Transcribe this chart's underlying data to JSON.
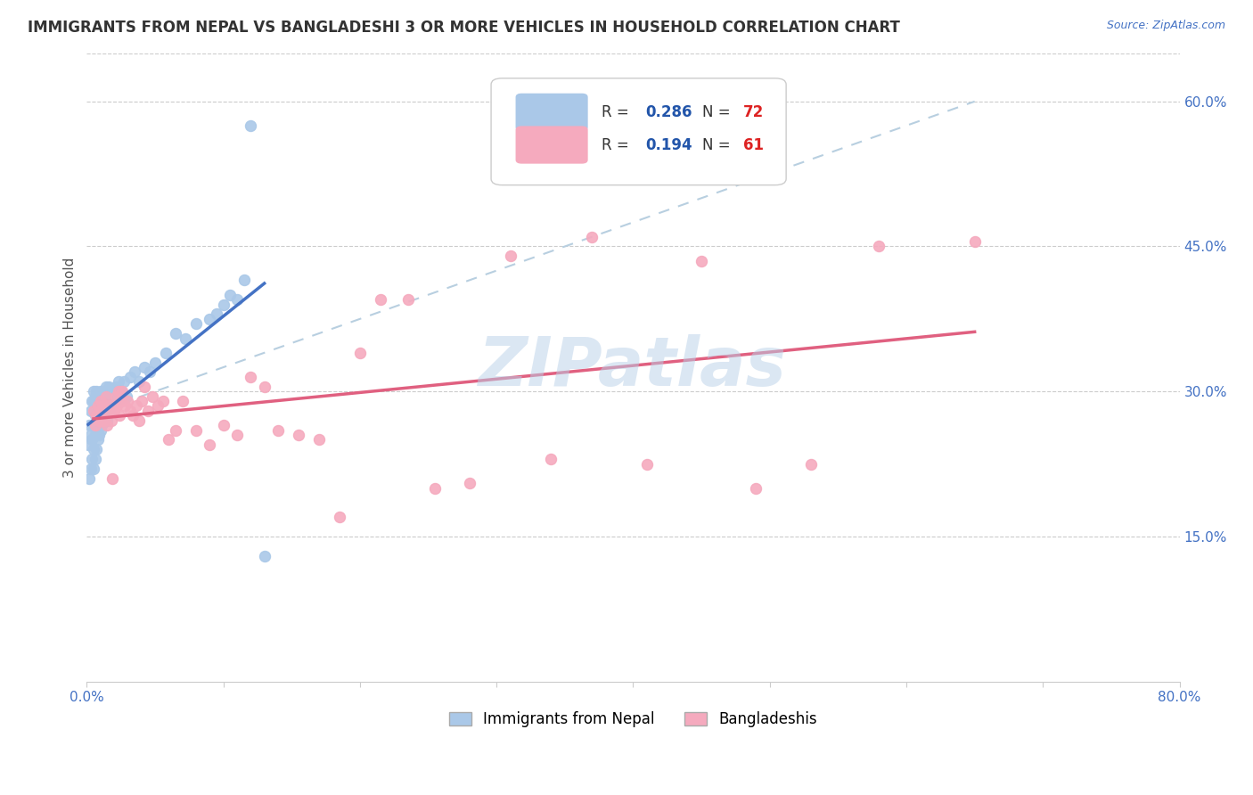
{
  "title": "IMMIGRANTS FROM NEPAL VS BANGLADESHI 3 OR MORE VEHICLES IN HOUSEHOLD CORRELATION CHART",
  "source": "Source: ZipAtlas.com",
  "ylabel": "3 or more Vehicles in Household",
  "xmin": 0.0,
  "xmax": 0.8,
  "ymin": 0.0,
  "ymax": 0.65,
  "x_ticks": [
    0.0,
    0.1,
    0.2,
    0.3,
    0.4,
    0.5,
    0.6,
    0.7,
    0.8
  ],
  "x_tick_labels_show": [
    "0.0%",
    "",
    "",
    "",
    "",
    "",
    "",
    "",
    "80.0%"
  ],
  "y_ticks": [
    0.15,
    0.3,
    0.45,
    0.6
  ],
  "y_tick_labels": [
    "15.0%",
    "30.0%",
    "45.0%",
    "60.0%"
  ],
  "nepal_R": 0.286,
  "nepal_N": 72,
  "bangladesh_R": 0.194,
  "bangladesh_N": 61,
  "nepal_color": "#aac8e8",
  "bangladesh_color": "#f5aabe",
  "nepal_line_color": "#4472c4",
  "bangladesh_line_color": "#e06080",
  "dashed_line_color": "#b8cfe0",
  "watermark": "ZIPatlas",
  "legend_R_color": "#2255aa",
  "legend_N_color": "#dd2222",
  "nepal_x": [
    0.001,
    0.002,
    0.002,
    0.003,
    0.003,
    0.003,
    0.004,
    0.004,
    0.004,
    0.004,
    0.005,
    0.005,
    0.005,
    0.005,
    0.005,
    0.006,
    0.006,
    0.006,
    0.006,
    0.007,
    0.007,
    0.007,
    0.007,
    0.008,
    0.008,
    0.008,
    0.009,
    0.009,
    0.009,
    0.01,
    0.01,
    0.01,
    0.011,
    0.011,
    0.012,
    0.012,
    0.013,
    0.013,
    0.014,
    0.014,
    0.015,
    0.015,
    0.016,
    0.016,
    0.017,
    0.018,
    0.019,
    0.02,
    0.021,
    0.022,
    0.023,
    0.025,
    0.027,
    0.029,
    0.032,
    0.035,
    0.038,
    0.042,
    0.046,
    0.05,
    0.058,
    0.065,
    0.072,
    0.08,
    0.09,
    0.095,
    0.1,
    0.105,
    0.11,
    0.115,
    0.12,
    0.13
  ],
  "nepal_y": [
    0.245,
    0.21,
    0.265,
    0.22,
    0.255,
    0.28,
    0.23,
    0.25,
    0.265,
    0.29,
    0.22,
    0.24,
    0.265,
    0.29,
    0.3,
    0.23,
    0.255,
    0.275,
    0.295,
    0.24,
    0.26,
    0.28,
    0.3,
    0.25,
    0.27,
    0.295,
    0.255,
    0.275,
    0.295,
    0.26,
    0.28,
    0.3,
    0.265,
    0.29,
    0.27,
    0.295,
    0.275,
    0.3,
    0.28,
    0.305,
    0.27,
    0.295,
    0.28,
    0.305,
    0.29,
    0.3,
    0.29,
    0.295,
    0.305,
    0.295,
    0.31,
    0.3,
    0.31,
    0.295,
    0.315,
    0.32,
    0.31,
    0.325,
    0.32,
    0.33,
    0.34,
    0.36,
    0.355,
    0.37,
    0.375,
    0.38,
    0.39,
    0.4,
    0.395,
    0.415,
    0.575,
    0.13
  ],
  "bangladesh_x": [
    0.005,
    0.006,
    0.007,
    0.008,
    0.009,
    0.01,
    0.011,
    0.012,
    0.013,
    0.014,
    0.015,
    0.016,
    0.017,
    0.018,
    0.019,
    0.02,
    0.021,
    0.022,
    0.023,
    0.024,
    0.025,
    0.026,
    0.028,
    0.03,
    0.032,
    0.034,
    0.036,
    0.038,
    0.04,
    0.042,
    0.045,
    0.048,
    0.052,
    0.056,
    0.06,
    0.065,
    0.07,
    0.08,
    0.09,
    0.1,
    0.11,
    0.12,
    0.13,
    0.14,
    0.155,
    0.17,
    0.185,
    0.2,
    0.215,
    0.235,
    0.255,
    0.28,
    0.31,
    0.34,
    0.37,
    0.41,
    0.45,
    0.49,
    0.53,
    0.58,
    0.65
  ],
  "bangladesh_y": [
    0.28,
    0.265,
    0.275,
    0.285,
    0.27,
    0.29,
    0.275,
    0.285,
    0.27,
    0.295,
    0.265,
    0.285,
    0.28,
    0.27,
    0.21,
    0.28,
    0.295,
    0.285,
    0.3,
    0.275,
    0.29,
    0.3,
    0.285,
    0.29,
    0.28,
    0.275,
    0.285,
    0.27,
    0.29,
    0.305,
    0.28,
    0.295,
    0.285,
    0.29,
    0.25,
    0.26,
    0.29,
    0.26,
    0.245,
    0.265,
    0.255,
    0.315,
    0.305,
    0.26,
    0.255,
    0.25,
    0.17,
    0.34,
    0.395,
    0.395,
    0.2,
    0.205,
    0.44,
    0.23,
    0.46,
    0.225,
    0.435,
    0.2,
    0.225,
    0.45,
    0.455
  ]
}
